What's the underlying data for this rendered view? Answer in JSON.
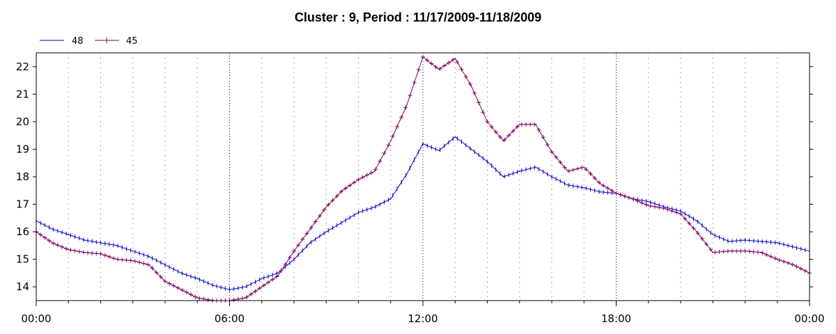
{
  "chart_data": {
    "type": "line",
    "title": "Cluster : 9, Period : 11/17/2009-11/18/2009",
    "xlabel": "",
    "ylabel": "",
    "x_ticks": [
      "00:00",
      "06:00",
      "12:00",
      "18:00",
      "00:00"
    ],
    "x_range_hours": [
      0,
      24
    ],
    "ylim": [
      13.5,
      22.5
    ],
    "y_ticks": [
      14,
      15,
      16,
      17,
      18,
      19,
      20,
      21,
      22
    ],
    "grid": "vertical dotted",
    "legend": "top-left",
    "x_hours": [
      0,
      0.5,
      1,
      1.5,
      2,
      2.5,
      3,
      3.5,
      4,
      4.5,
      5,
      5.5,
      6,
      6.5,
      7,
      7.5,
      8,
      8.5,
      9,
      9.5,
      10,
      10.5,
      11,
      11.5,
      12,
      12.5,
      13,
      13.5,
      14,
      14.5,
      15,
      15.5,
      16,
      16.5,
      17,
      17.5,
      18,
      18.5,
      19,
      19.5,
      20,
      20.5,
      21,
      21.5,
      22,
      22.5,
      23,
      23.5,
      24
    ],
    "series": [
      {
        "name": "48",
        "color": "#0000cc",
        "marker": "tick",
        "values": [
          16.4,
          16.1,
          15.9,
          15.7,
          15.6,
          15.5,
          15.3,
          15.1,
          14.8,
          14.5,
          14.3,
          14.05,
          13.9,
          14.0,
          14.3,
          14.5,
          15.0,
          15.6,
          16.0,
          16.35,
          16.7,
          16.9,
          17.2,
          18.1,
          19.2,
          18.95,
          19.45,
          19.0,
          18.55,
          18.0,
          18.2,
          18.35,
          18.0,
          17.7,
          17.6,
          17.45,
          17.4,
          17.2,
          17.1,
          16.9,
          16.75,
          16.4,
          15.9,
          15.65,
          15.7,
          15.65,
          15.6,
          15.45,
          15.3
        ]
      },
      {
        "name": "45",
        "color": "#800060",
        "marker": "plus",
        "values": [
          16.0,
          15.6,
          15.35,
          15.25,
          15.2,
          15.0,
          14.95,
          14.8,
          14.2,
          13.9,
          13.6,
          13.5,
          13.5,
          13.6,
          14.0,
          14.4,
          15.3,
          16.1,
          16.9,
          17.5,
          17.9,
          18.2,
          19.3,
          20.6,
          22.35,
          21.9,
          22.3,
          21.3,
          20.0,
          19.3,
          19.9,
          19.9,
          18.9,
          18.2,
          18.35,
          17.75,
          17.4,
          17.2,
          16.95,
          16.85,
          16.65,
          16.0,
          15.25,
          15.3,
          15.3,
          15.25,
          15.0,
          14.8,
          14.5
        ]
      }
    ]
  }
}
